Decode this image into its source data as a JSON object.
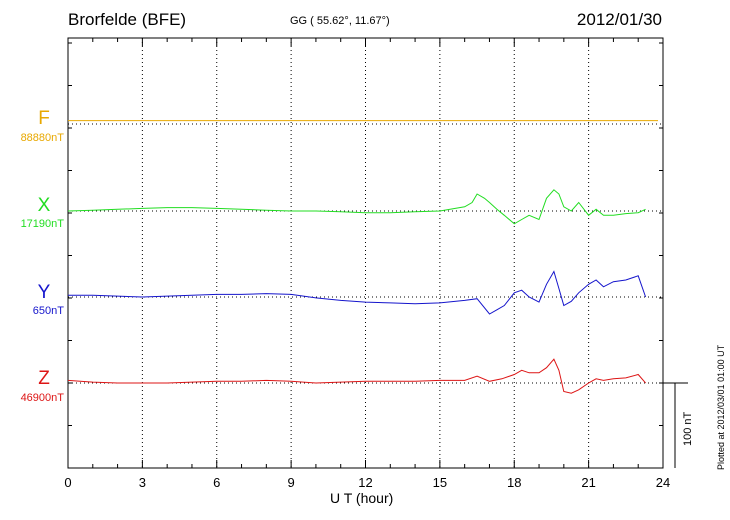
{
  "header": {
    "station": "Brorfelde (BFE)",
    "coords": "GG ( 55.62°,  11.67°)",
    "date": "2012/01/30"
  },
  "plotted": "Plotted at 2012/03/01 01:00 UT",
  "scale_label": "100 nT",
  "chart_data": {
    "type": "line",
    "xlabel": "U T (hour)",
    "xlim": [
      0,
      24
    ],
    "xticks": [
      0,
      3,
      6,
      9,
      12,
      15,
      18,
      21,
      24
    ],
    "scale_bar_nT": 100,
    "series": [
      {
        "name": "F",
        "baseline": "88880nT",
        "color": "#e8a800",
        "x": [
          0,
          23.8
        ],
        "y": [
          4,
          4
        ]
      },
      {
        "name": "X",
        "baseline": "17190nT",
        "color": "#22dd22",
        "x": [
          0,
          1,
          2,
          3,
          4,
          5,
          6,
          7,
          8,
          9,
          10,
          11,
          12,
          13,
          14,
          15,
          16,
          16.3,
          16.5,
          16.8,
          17,
          17.3,
          17.6,
          18,
          18.3,
          18.6,
          19,
          19.3,
          19.6,
          19.8,
          20,
          20.3,
          20.6,
          21,
          21.3,
          21.6,
          22,
          22.5,
          23,
          23.3
        ],
        "y": [
          0,
          1,
          2,
          3,
          4,
          4,
          3,
          2,
          1,
          0,
          0,
          -1,
          -2,
          -2,
          -1,
          0,
          5,
          10,
          20,
          15,
          10,
          2,
          -5,
          -15,
          -10,
          -5,
          -10,
          15,
          25,
          20,
          5,
          0,
          10,
          -5,
          2,
          -5,
          -5,
          -3,
          -2,
          2
        ]
      },
      {
        "name": "Y",
        "baseline": "650nT",
        "color": "#1515cc",
        "x": [
          0,
          1,
          2,
          3,
          4,
          5,
          6,
          7,
          8,
          9,
          10,
          11,
          12,
          13,
          14,
          15,
          16,
          16.5,
          17,
          17.3,
          17.6,
          18,
          18.3,
          18.6,
          19,
          19.3,
          19.6,
          19.8,
          20,
          20.3,
          20.6,
          21,
          21.3,
          21.6,
          22,
          22.5,
          23,
          23.3
        ],
        "y": [
          2,
          2,
          1,
          0,
          1,
          2,
          3,
          3,
          4,
          3,
          -1,
          -4,
          -6,
          -7,
          -8,
          -7,
          -4,
          -2,
          -20,
          -15,
          -10,
          5,
          8,
          0,
          -6,
          15,
          30,
          10,
          -10,
          -5,
          5,
          15,
          20,
          12,
          18,
          20,
          25,
          0
        ]
      },
      {
        "name": "Z",
        "baseline": "46900nT",
        "color": "#dd1515",
        "x": [
          0,
          1,
          2,
          3,
          4,
          5,
          6,
          7,
          8,
          9,
          10,
          11,
          12,
          13,
          14,
          15,
          16,
          16.5,
          17,
          17.5,
          18,
          18.3,
          18.6,
          19,
          19.3,
          19.6,
          19.8,
          20,
          20.3,
          20.6,
          21,
          21.3,
          21.6,
          22,
          22.5,
          23,
          23.3
        ],
        "y": [
          3,
          1,
          0,
          0,
          0,
          1,
          2,
          2,
          3,
          2,
          0,
          1,
          2,
          2,
          2,
          3,
          3,
          8,
          2,
          5,
          10,
          15,
          12,
          12,
          18,
          28,
          15,
          -10,
          -12,
          -8,
          0,
          5,
          3,
          5,
          6,
          10,
          0
        ]
      }
    ]
  }
}
